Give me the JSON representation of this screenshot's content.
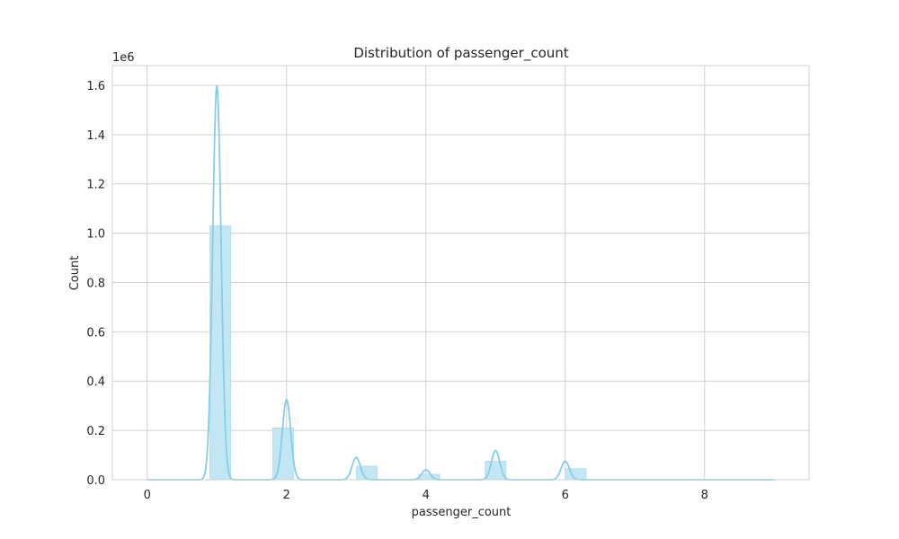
{
  "chart_data": {
    "type": "bar",
    "title": "Distribution of passenger_count",
    "xlabel": "passenger_count",
    "ylabel": "Count",
    "y_offset_label": "1e6",
    "y_scale": 1000000,
    "xlim": [
      -0.5,
      9.5
    ],
    "ylim": [
      0,
      1680000
    ],
    "xticks": [
      0,
      2,
      4,
      6,
      8
    ],
    "yticks": [
      0.0,
      0.2,
      0.4,
      0.6,
      0.8,
      1.0,
      1.2,
      1.4,
      1.6
    ],
    "grid": true,
    "bar_width": 0.3,
    "bars": [
      {
        "x": 1.05,
        "value": 1030000
      },
      {
        "x": 1.95,
        "value": 210000
      },
      {
        "x": 3.15,
        "value": 55000
      },
      {
        "x": 4.05,
        "value": 22000
      },
      {
        "x": 5.0,
        "value": 75000
      },
      {
        "x": 6.15,
        "value": 45000
      }
    ],
    "kde": {
      "peaks": [
        {
          "x": 1.0,
          "value": 1600000,
          "width": 0.06
        },
        {
          "x": 2.0,
          "value": 325000,
          "width": 0.06
        },
        {
          "x": 3.0,
          "value": 90000,
          "width": 0.06
        },
        {
          "x": 4.0,
          "value": 40000,
          "width": 0.06
        },
        {
          "x": 5.0,
          "value": 118000,
          "width": 0.06
        },
        {
          "x": 6.0,
          "value": 75000,
          "width": 0.06
        }
      ],
      "x_range": [
        0,
        9
      ]
    },
    "colors": {
      "bar_fill": "#c3e6f5",
      "bar_edge": "#b2ddf0",
      "line": "#87cde6",
      "grid": "#d0d0d0",
      "frame": "#d0d0d0"
    }
  }
}
